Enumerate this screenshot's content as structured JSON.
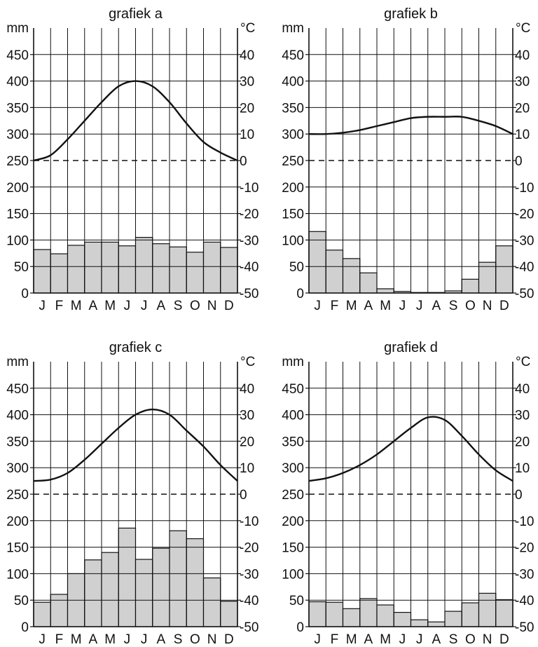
{
  "colors": {
    "bar_fill": "#d0d0d0",
    "stroke": "#111111",
    "background": "#ffffff"
  },
  "chart_data": [
    {
      "type": "bar+line",
      "title": "grafiek a",
      "categories": [
        "J",
        "F",
        "M",
        "A",
        "M",
        "J",
        "J",
        "A",
        "S",
        "O",
        "N",
        "D"
      ],
      "left_axis": {
        "unit": "mm",
        "ylim": [
          0,
          500
        ],
        "ticks": [
          0,
          50,
          100,
          150,
          200,
          250,
          300,
          350,
          400,
          450
        ]
      },
      "right_axis": {
        "unit": "°C",
        "ylim": [
          -50,
          50
        ],
        "ticks": [
          -50,
          -40,
          -30,
          -20,
          -10,
          0,
          10,
          20,
          30,
          40
        ]
      },
      "reference_line": {
        "axis": "right",
        "value": 0,
        "style": "dashed"
      },
      "grid": true,
      "precipitation_mm": [
        82,
        74,
        90,
        96,
        96,
        89,
        105,
        93,
        87,
        77,
        96,
        86
      ],
      "temperature_curve_c": {
        "x": [
          0,
          1,
          2,
          3,
          4,
          5,
          6,
          7,
          8,
          9,
          10,
          11,
          12
        ],
        "y": [
          0,
          2,
          8,
          15,
          22,
          28,
          30,
          28,
          22,
          14,
          7,
          3,
          0
        ]
      }
    },
    {
      "type": "bar+line",
      "title": "grafiek b",
      "categories": [
        "J",
        "F",
        "M",
        "A",
        "M",
        "J",
        "J",
        "A",
        "S",
        "O",
        "N",
        "D"
      ],
      "left_axis": {
        "unit": "mm",
        "ylim": [
          0,
          500
        ],
        "ticks": [
          0,
          50,
          100,
          150,
          200,
          250,
          300,
          350,
          400,
          450
        ]
      },
      "right_axis": {
        "unit": "°C",
        "ylim": [
          -50,
          50
        ],
        "ticks": [
          -50,
          -40,
          -30,
          -20,
          -10,
          0,
          10,
          20,
          30,
          40
        ]
      },
      "reference_line": {
        "axis": "right",
        "value": 0,
        "style": "dashed"
      },
      "grid": true,
      "precipitation_mm": [
        116,
        81,
        65,
        38,
        8,
        3,
        1,
        1,
        4,
        26,
        58,
        89
      ],
      "temperature_curve_c": {
        "x": [
          0,
          1,
          2,
          3,
          4,
          5,
          6,
          7,
          8,
          9,
          10,
          11,
          12
        ],
        "y": [
          10,
          10,
          10.5,
          11.5,
          13,
          14.5,
          16,
          16.5,
          16.5,
          16.5,
          15,
          13,
          10
        ]
      }
    },
    {
      "type": "bar+line",
      "title": "grafiek c",
      "categories": [
        "J",
        "F",
        "M",
        "A",
        "M",
        "J",
        "J",
        "A",
        "S",
        "O",
        "N",
        "D"
      ],
      "left_axis": {
        "unit": "mm",
        "ylim": [
          0,
          500
        ],
        "ticks": [
          0,
          50,
          100,
          150,
          200,
          250,
          300,
          350,
          400,
          450
        ]
      },
      "right_axis": {
        "unit": "°C",
        "ylim": [
          -50,
          50
        ],
        "ticks": [
          -50,
          -40,
          -30,
          -20,
          -10,
          0,
          10,
          20,
          30,
          40
        ]
      },
      "reference_line": {
        "axis": "right",
        "value": 0,
        "style": "dashed"
      },
      "grid": true,
      "precipitation_mm": [
        46,
        61,
        100,
        126,
        140,
        186,
        127,
        148,
        181,
        166,
        92,
        48
      ],
      "temperature_curve_c": {
        "x": [
          0,
          1,
          2,
          3,
          4,
          5,
          6,
          7,
          8,
          9,
          10,
          11,
          12
        ],
        "y": [
          5,
          5.5,
          8,
          13,
          19,
          25,
          30,
          32,
          30,
          24,
          18,
          11,
          5
        ]
      }
    },
    {
      "type": "bar+line",
      "title": "grafiek d",
      "categories": [
        "J",
        "F",
        "M",
        "A",
        "M",
        "J",
        "J",
        "A",
        "S",
        "O",
        "N",
        "D"
      ],
      "left_axis": {
        "unit": "mm",
        "ylim": [
          0,
          500
        ],
        "ticks": [
          0,
          50,
          100,
          150,
          200,
          250,
          300,
          350,
          400,
          450
        ]
      },
      "right_axis": {
        "unit": "°C",
        "ylim": [
          -50,
          50
        ],
        "ticks": [
          -50,
          -40,
          -30,
          -20,
          -10,
          0,
          10,
          20,
          30,
          40
        ]
      },
      "reference_line": {
        "axis": "right",
        "value": 0,
        "style": "dashed"
      },
      "grid": true,
      "precipitation_mm": [
        47,
        46,
        34,
        53,
        41,
        27,
        13,
        9,
        29,
        45,
        63,
        51
      ],
      "temperature_curve_c": {
        "x": [
          0,
          1,
          2,
          3,
          4,
          5,
          6,
          7,
          8,
          9,
          10,
          11,
          12
        ],
        "y": [
          5,
          6,
          8,
          11,
          15,
          20,
          25,
          29,
          28,
          22,
          15,
          9,
          5
        ]
      }
    }
  ]
}
